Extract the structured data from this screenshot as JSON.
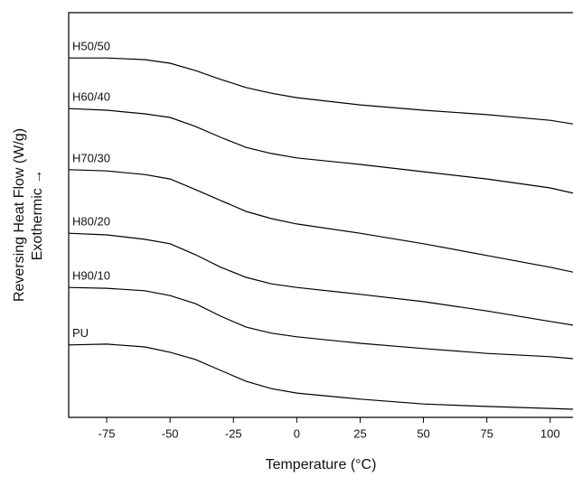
{
  "chart_data": {
    "type": "line",
    "xlabel": "Temperature (°C)",
    "ylabel": [
      "Reversing Heat Flow (W/g)",
      "Exothermic →"
    ],
    "x": [
      -90,
      -75,
      -60,
      -50,
      -40,
      -30,
      -20,
      -10,
      0,
      25,
      50,
      75,
      100,
      109
    ],
    "xlim": [
      -90,
      109
    ],
    "xticks": [
      -75,
      -50,
      -25,
      0,
      25,
      50,
      75,
      100
    ],
    "ylim": [
      0,
      100
    ],
    "series": [
      {
        "name": "H50/50",
        "color": "#000000",
        "values": [
          88.8,
          88.8,
          88.4,
          87.5,
          85.7,
          83.5,
          81.5,
          80.1,
          79.0,
          77.2,
          75.9,
          74.8,
          73.4,
          72.5
        ]
      },
      {
        "name": "H60/40",
        "color": "#000000",
        "values": [
          76.3,
          75.9,
          75.0,
          74.1,
          71.9,
          69.2,
          66.7,
          65.2,
          64.1,
          62.5,
          60.7,
          58.9,
          56.7,
          55.4
        ]
      },
      {
        "name": "H70/30",
        "color": "#000000",
        "values": [
          61.2,
          60.9,
          60.0,
          58.9,
          56.3,
          53.6,
          50.9,
          49.1,
          47.8,
          45.5,
          42.9,
          40.0,
          37.1,
          35.9
        ]
      },
      {
        "name": "H80/20",
        "color": "#000000",
        "values": [
          45.5,
          45.1,
          44.0,
          42.9,
          40.2,
          37.1,
          34.6,
          33.0,
          32.1,
          30.4,
          28.6,
          26.3,
          23.7,
          22.8
        ]
      },
      {
        "name": "H90/10",
        "color": "#000000",
        "values": [
          32.1,
          31.9,
          31.3,
          30.1,
          28.1,
          25.0,
          22.3,
          20.8,
          19.9,
          18.3,
          17.0,
          15.8,
          15.0,
          14.5
        ]
      },
      {
        "name": "PU",
        "color": "#000000",
        "values": [
          17.9,
          18.1,
          17.4,
          16.1,
          14.3,
          11.6,
          8.9,
          7.1,
          6.0,
          4.5,
          3.3,
          2.7,
          2.2,
          2.0
        ]
      }
    ]
  }
}
